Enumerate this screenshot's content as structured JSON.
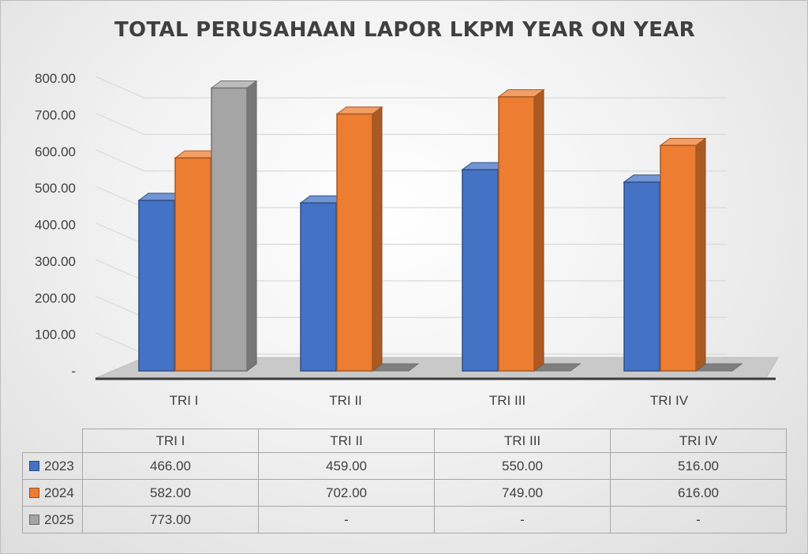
{
  "chart_data": {
    "type": "bar",
    "title": "TOTAL PERUSAHAAN LAPOR LKPM YEAR ON YEAR",
    "categories": [
      "TRI I",
      "TRI II",
      "TRI III",
      "TRI IV"
    ],
    "series": [
      {
        "name": "2023",
        "values": [
          466.0,
          459.0,
          550.0,
          516.0
        ],
        "labels": [
          "466.00",
          "459.00",
          "550.00",
          "516.00"
        ],
        "color": "#4472C4"
      },
      {
        "name": "2024",
        "values": [
          582.0,
          702.0,
          749.0,
          616.0
        ],
        "labels": [
          "582.00",
          "702.00",
          "749.00",
          "616.00"
        ],
        "color": "#ED7D31"
      },
      {
        "name": "2025",
        "values": [
          773.0,
          null,
          null,
          null
        ],
        "labels": [
          "773.00",
          "-",
          "-",
          "-"
        ],
        "color": "#A5A5A5"
      }
    ],
    "yticks": [
      "-",
      "100.00",
      "200.00",
      "300.00",
      "400.00",
      "500.00",
      "600.00",
      "700.00",
      "800.00"
    ],
    "ylim": [
      0,
      800
    ],
    "grid": true,
    "style": "3d-clustered-column",
    "legend": "data-table"
  }
}
